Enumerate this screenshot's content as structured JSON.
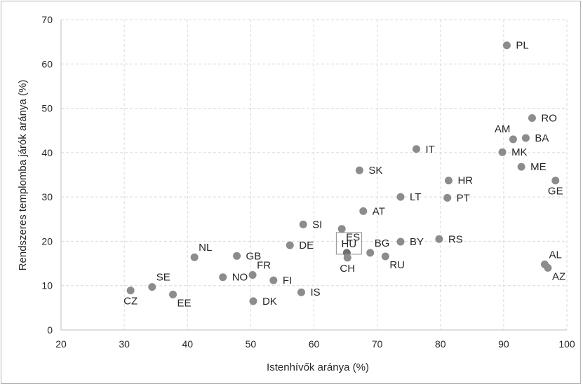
{
  "chart_data": {
    "type": "scatter",
    "xlabel": "Istenhívők aránya (%)",
    "ylabel": "Rendszeres templomba járók aránya (%)",
    "xlim": [
      20,
      100
    ],
    "ylim": [
      0,
      70
    ],
    "xticks": [
      20,
      30,
      40,
      50,
      60,
      70,
      80,
      90,
      100
    ],
    "yticks": [
      0,
      10,
      20,
      30,
      40,
      50,
      60,
      70
    ],
    "grid": true,
    "marker_color": "#8c8c8c",
    "highlight_color": "#6e6e6e",
    "highlight_box_color": "#8c8c8c",
    "highlighted": "HU",
    "points": [
      {
        "label": "PL",
        "x": 90.5,
        "y": 64.2,
        "pos": "right"
      },
      {
        "label": "RO",
        "x": 94.5,
        "y": 47.8,
        "pos": "right"
      },
      {
        "label": "AM",
        "x": 91.5,
        "y": 43.0,
        "pos": "above-left"
      },
      {
        "label": "BA",
        "x": 93.5,
        "y": 43.3,
        "pos": "right"
      },
      {
        "label": "MK",
        "x": 89.8,
        "y": 40.1,
        "pos": "right"
      },
      {
        "label": "ME",
        "x": 92.8,
        "y": 36.8,
        "pos": "right"
      },
      {
        "label": "GE",
        "x": 98.2,
        "y": 33.7,
        "pos": "below"
      },
      {
        "label": "IT",
        "x": 76.2,
        "y": 40.8,
        "pos": "right"
      },
      {
        "label": "SK",
        "x": 67.2,
        "y": 36.0,
        "pos": "right"
      },
      {
        "label": "HR",
        "x": 81.3,
        "y": 33.7,
        "pos": "right"
      },
      {
        "label": "LT",
        "x": 73.7,
        "y": 30.0,
        "pos": "right"
      },
      {
        "label": "PT",
        "x": 81.1,
        "y": 29.8,
        "pos": "right"
      },
      {
        "label": "AT",
        "x": 67.8,
        "y": 26.8,
        "pos": "right"
      },
      {
        "label": "SI",
        "x": 58.3,
        "y": 23.8,
        "pos": "right"
      },
      {
        "label": "ES",
        "x": 64.4,
        "y": 22.8,
        "pos": "below-right"
      },
      {
        "label": "RS",
        "x": 79.8,
        "y": 20.5,
        "pos": "right"
      },
      {
        "label": "BY",
        "x": 73.7,
        "y": 19.9,
        "pos": "right"
      },
      {
        "label": "DE",
        "x": 56.2,
        "y": 19.1,
        "pos": "right"
      },
      {
        "label": "HU",
        "x": 65.2,
        "y": 17.4,
        "pos": "box"
      },
      {
        "label": "BG",
        "x": 68.9,
        "y": 17.4,
        "pos": "above-right"
      },
      {
        "label": "CH",
        "x": 65.3,
        "y": 16.3,
        "pos": "below"
      },
      {
        "label": "RU",
        "x": 71.3,
        "y": 16.6,
        "pos": "below-right"
      },
      {
        "label": "GB",
        "x": 47.8,
        "y": 16.7,
        "pos": "right"
      },
      {
        "label": "NL",
        "x": 41.1,
        "y": 16.4,
        "pos": "above-right"
      },
      {
        "label": "AL",
        "x": 96.5,
        "y": 14.8,
        "pos": "above-right"
      },
      {
        "label": "AZ",
        "x": 97.0,
        "y": 14.0,
        "pos": "below-right"
      },
      {
        "label": "FR",
        "x": 50.3,
        "y": 12.4,
        "pos": "above-right"
      },
      {
        "label": "NO",
        "x": 45.6,
        "y": 11.9,
        "pos": "right"
      },
      {
        "label": "FI",
        "x": 53.6,
        "y": 11.2,
        "pos": "right"
      },
      {
        "label": "SE",
        "x": 34.4,
        "y": 9.7,
        "pos": "above-right"
      },
      {
        "label": "CZ",
        "x": 31.0,
        "y": 8.9,
        "pos": "below"
      },
      {
        "label": "EE",
        "x": 37.7,
        "y": 8.0,
        "pos": "below-right"
      },
      {
        "label": "IS",
        "x": 58.0,
        "y": 8.5,
        "pos": "right"
      },
      {
        "label": "DK",
        "x": 50.4,
        "y": 6.5,
        "pos": "right"
      }
    ]
  }
}
